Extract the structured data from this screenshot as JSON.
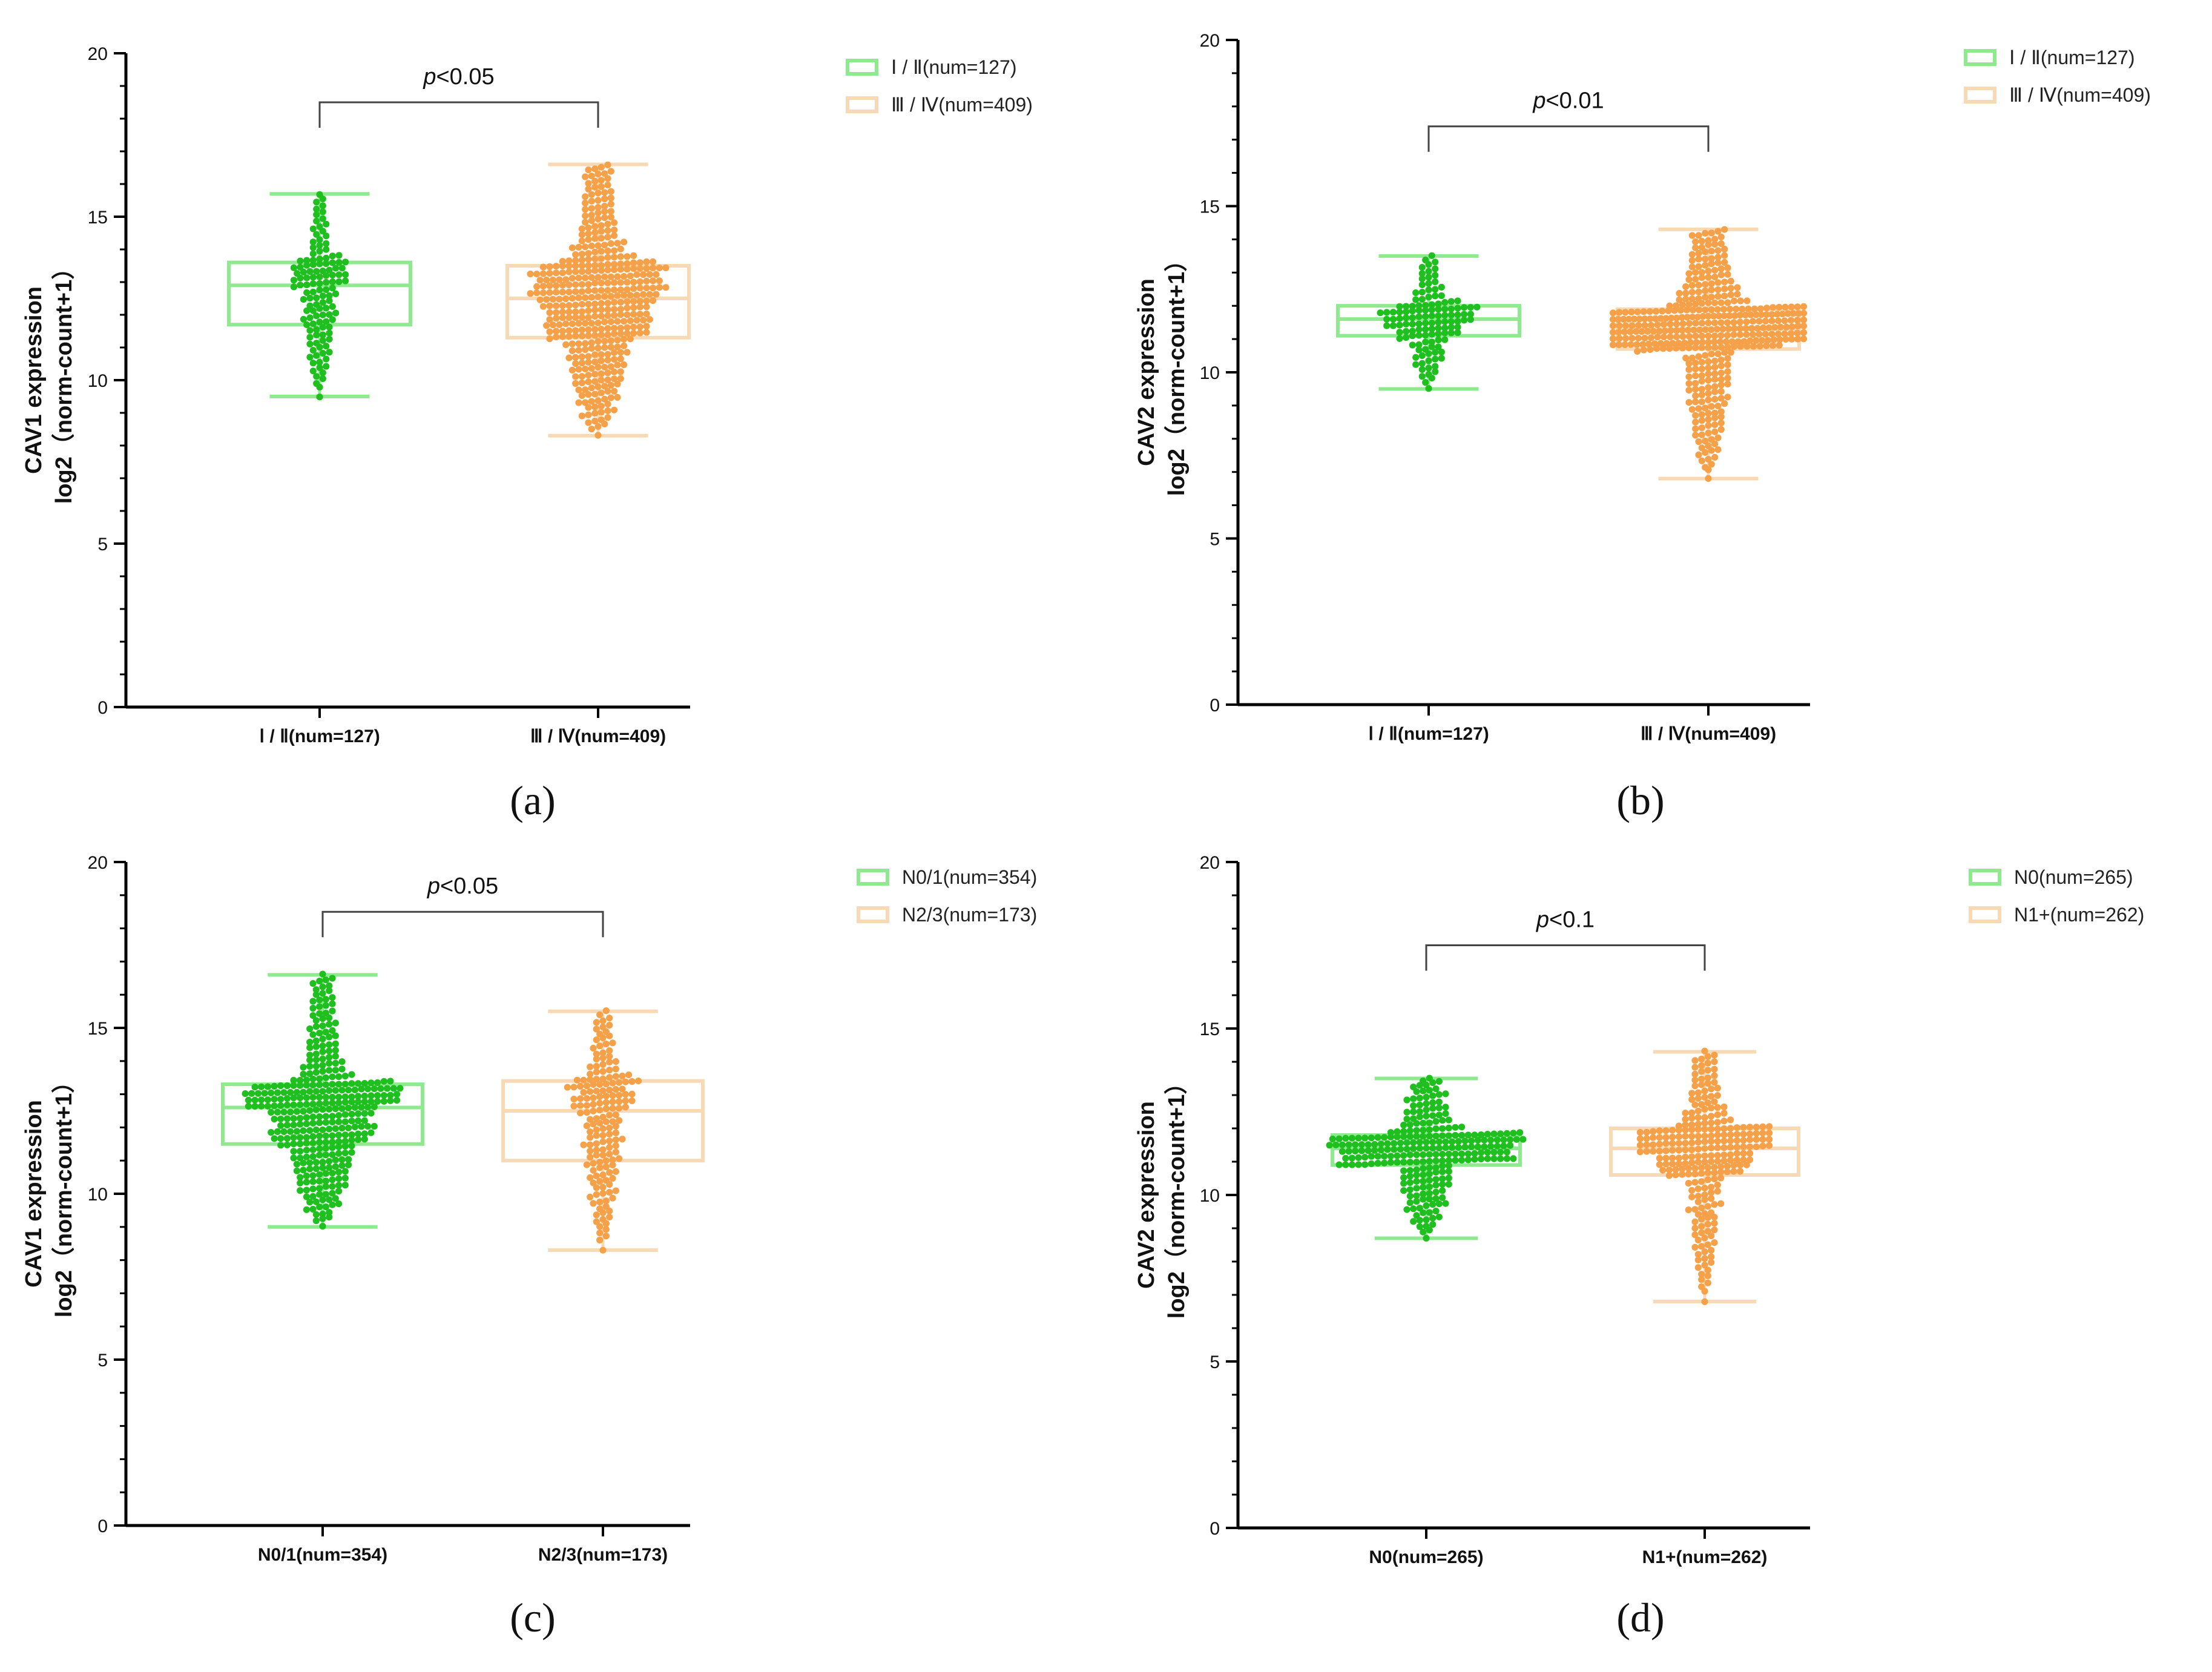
{
  "colors": {
    "group1_point": "#1fbf1f",
    "group1_box": "#8fea8f",
    "group2_point": "#f4a14a",
    "group2_box": "#f8d9b5",
    "axis": "#000000"
  },
  "chart_data": [
    {
      "type": "box-swarm",
      "panel_label": "(a)",
      "ylabel_line1": "CAV1 expression",
      "ylabel_line2": "log2（norm-count+1）",
      "ylim": [
        0,
        20
      ],
      "yticks": [
        0,
        5,
        10,
        15,
        20
      ],
      "categories": [
        "Ⅰ / Ⅱ(num=127)",
        "Ⅲ / Ⅳ(num=409)"
      ],
      "legend": [
        "Ⅰ / Ⅱ(num=127)",
        "Ⅲ / Ⅳ(num=409)"
      ],
      "p_label": "p<0.05",
      "bracket_y": 18.5,
      "series": [
        {
          "name": "Ⅰ / Ⅱ(num=127)",
          "n": 127,
          "min": 9.5,
          "q1": 11.7,
          "median": 12.9,
          "q3": 13.6,
          "max": 15.7
        },
        {
          "name": "Ⅲ / Ⅳ(num=409)",
          "n": 409,
          "min": 8.3,
          "q1": 11.3,
          "median": 12.5,
          "q3": 13.5,
          "max": 16.6
        }
      ]
    },
    {
      "type": "box-swarm",
      "panel_label": "(b)",
      "ylabel_line1": "CAV2 expression",
      "ylabel_line2": "log2（norm-count+1）",
      "ylim": [
        0,
        20
      ],
      "yticks": [
        0,
        5,
        10,
        15,
        20
      ],
      "categories": [
        "Ⅰ / Ⅱ(num=127)",
        "Ⅲ / Ⅳ(num=409)"
      ],
      "legend": [
        "Ⅰ / Ⅱ(num=127)",
        "Ⅲ / Ⅳ(num=409)"
      ],
      "p_label": "p<0.01",
      "bracket_y": 17.4,
      "series": [
        {
          "name": "Ⅰ / Ⅱ(num=127)",
          "n": 127,
          "min": 9.5,
          "q1": 11.1,
          "median": 11.6,
          "q3": 12.0,
          "max": 13.5
        },
        {
          "name": "Ⅲ / Ⅳ(num=409)",
          "n": 409,
          "min": 6.8,
          "q1": 10.7,
          "median": 11.3,
          "q3": 11.9,
          "max": 14.3
        }
      ]
    },
    {
      "type": "box-swarm",
      "panel_label": "(c)",
      "ylabel_line1": "CAV1 expression",
      "ylabel_line2": "log2（norm-count+1）",
      "ylim": [
        0,
        20
      ],
      "yticks": [
        0,
        5,
        10,
        15,
        20
      ],
      "categories": [
        "N0/1(num=354)",
        "N2/3(num=173)"
      ],
      "legend": [
        "N0/1(num=354)",
        "N2/3(num=173)"
      ],
      "p_label": "p<0.05",
      "bracket_y": 18.5,
      "series": [
        {
          "name": "N0/1(num=354)",
          "n": 354,
          "min": 9.0,
          "q1": 11.5,
          "median": 12.6,
          "q3": 13.3,
          "max": 16.6
        },
        {
          "name": "N2/3(num=173)",
          "n": 173,
          "min": 8.3,
          "q1": 11.0,
          "median": 12.5,
          "q3": 13.4,
          "max": 15.5
        }
      ]
    },
    {
      "type": "box-swarm",
      "panel_label": "(d)",
      "ylabel_line1": "CAV2 expression",
      "ylabel_line2": "log2（norm-count+1）",
      "ylim": [
        0,
        20
      ],
      "yticks": [
        0,
        5,
        10,
        15,
        20
      ],
      "categories": [
        "N0(num=265)",
        "N1+(num=262)"
      ],
      "legend": [
        "N0(num=265)",
        "N1+(num=262)"
      ],
      "p_label": "p<0.1",
      "bracket_y": 17.5,
      "series": [
        {
          "name": "N0(num=265)",
          "n": 265,
          "min": 8.7,
          "q1": 10.9,
          "median": 11.4,
          "q3": 11.8,
          "max": 13.5
        },
        {
          "name": "N1+(num=262)",
          "n": 262,
          "min": 6.8,
          "q1": 10.6,
          "median": 11.4,
          "q3": 12.0,
          "max": 14.3
        }
      ]
    }
  ]
}
